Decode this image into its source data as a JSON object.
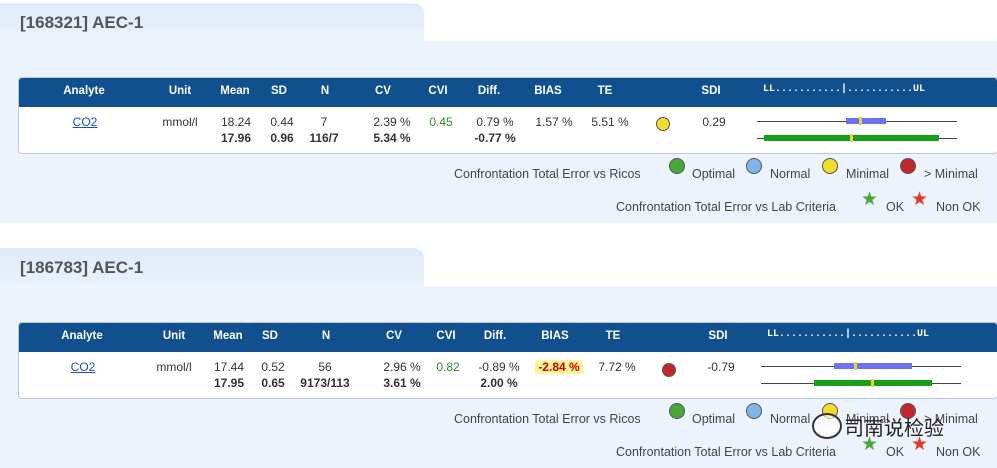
{
  "headers": {
    "analyte": "Analyte",
    "unit": "Unit",
    "mean": "Mean",
    "sd": "SD",
    "n": "N",
    "cv": "CV",
    "cvi": "CVI",
    "diff": "Diff.",
    "bias": "BIAS",
    "te": "TE",
    "sdi": "SDI",
    "scale": "LL...........|...........UL"
  },
  "legend": {
    "ricos_label": "Confrontation Total Error vs Ricos",
    "optimal": "Optimal",
    "normal": "Normal",
    "minimal": "Minimal",
    "gt_minimal": "> Minimal",
    "lab_label": "Confrontation Total Error vs Lab Criteria",
    "ok": "OK",
    "non_ok": "Non OK"
  },
  "colors": {
    "header": "#11508f",
    "optimal": "#4aa83a",
    "normal": "#7fb4e6",
    "minimal": "#f4dc2a",
    "gt_minimal": "#c0282e",
    "cvi": "#2a8a2a",
    "bar_blue": "#6f6ff2",
    "bar_green": "#16a016",
    "marker": "#e8d23a"
  },
  "panels": [
    {
      "title": "[168321]  AEC-1",
      "row": {
        "analyte": "CO2",
        "unit": "mmol/l",
        "mean": "18.24",
        "mean2": "17.96",
        "sd": "0.44",
        "sd2": "0.96",
        "n": "7",
        "n2": "116/7",
        "cv": "2.39 %",
        "cv2": "5.34 %",
        "cvi": "0.45",
        "diff": "0.79 %",
        "diff2": "-0.77 %",
        "bias": "1.57 %",
        "te": "5.51 %",
        "status_icon": "yellow-circle",
        "sdi": "0.29"
      }
    },
    {
      "title": "[186783]  AEC-1",
      "row": {
        "analyte": "CO2",
        "unit": "mmol/l",
        "mean": "17.44",
        "mean2": "17.95",
        "sd": "0.52",
        "sd2": "0.65",
        "n": "56",
        "n2": "9173/113",
        "cv": "2.96 %",
        "cv2": "3.61 %",
        "cvi": "0.82",
        "diff": "-0.89 %",
        "diff2": "2.00 %",
        "bias": "-2.84 %",
        "te": "7.72 %",
        "status_icon": "red-circle",
        "sdi": "-0.79"
      }
    }
  ],
  "watermark": "司南说检验"
}
